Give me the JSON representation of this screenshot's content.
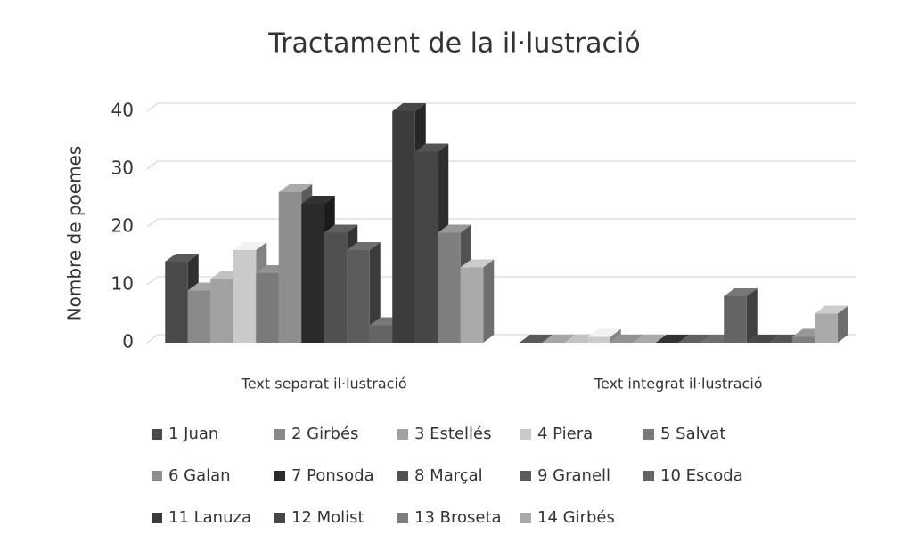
{
  "chart_data": {
    "type": "bar3d",
    "title": "Tractament de la il·lustració",
    "y_label": "Nombre de poemes",
    "categories": [
      "Text separat il·lustració",
      "Text integrat il·lustració"
    ],
    "ylim": [
      0,
      40
    ],
    "yticks": [
      0,
      10,
      20,
      30,
      40
    ],
    "grid": true,
    "legend": "bottom",
    "series": [
      {
        "name": "1 Juan",
        "color": "#4a4a4a",
        "values": [
          14,
          0
        ]
      },
      {
        "name": "2 Girbés",
        "color": "#8a8a8a",
        "values": [
          9,
          0
        ]
      },
      {
        "name": "3 Estellés",
        "color": "#a2a2a2",
        "values": [
          11,
          0
        ]
      },
      {
        "name": "4 Piera",
        "color": "#cacaca",
        "values": [
          16,
          1
        ]
      },
      {
        "name": "5 Salvat",
        "color": "#7a7a7a",
        "values": [
          12,
          0
        ]
      },
      {
        "name": "6 Galan",
        "color": "#8e8e8e",
        "values": [
          26,
          0
        ]
      },
      {
        "name": "7 Ponsoda",
        "color": "#2a2a2a",
        "values": [
          24,
          0
        ]
      },
      {
        "name": "8 Marçal",
        "color": "#505050",
        "values": [
          19,
          0
        ]
      },
      {
        "name": "9 Granell",
        "color": "#5c5c5c",
        "values": [
          16,
          0
        ]
      },
      {
        "name": "10 Escoda",
        "color": "#646464",
        "values": [
          3,
          8
        ]
      },
      {
        "name": "11 Lanuza",
        "color": "#3c3c3c",
        "values": [
          40,
          0
        ]
      },
      {
        "name": "12 Molist",
        "color": "#464646",
        "values": [
          33,
          0
        ]
      },
      {
        "name": "13 Broseta",
        "color": "#7e7e7e",
        "values": [
          19,
          1
        ]
      },
      {
        "name": "14 Girbés",
        "color": "#aaaaaa",
        "values": [
          13,
          5
        ]
      }
    ]
  }
}
